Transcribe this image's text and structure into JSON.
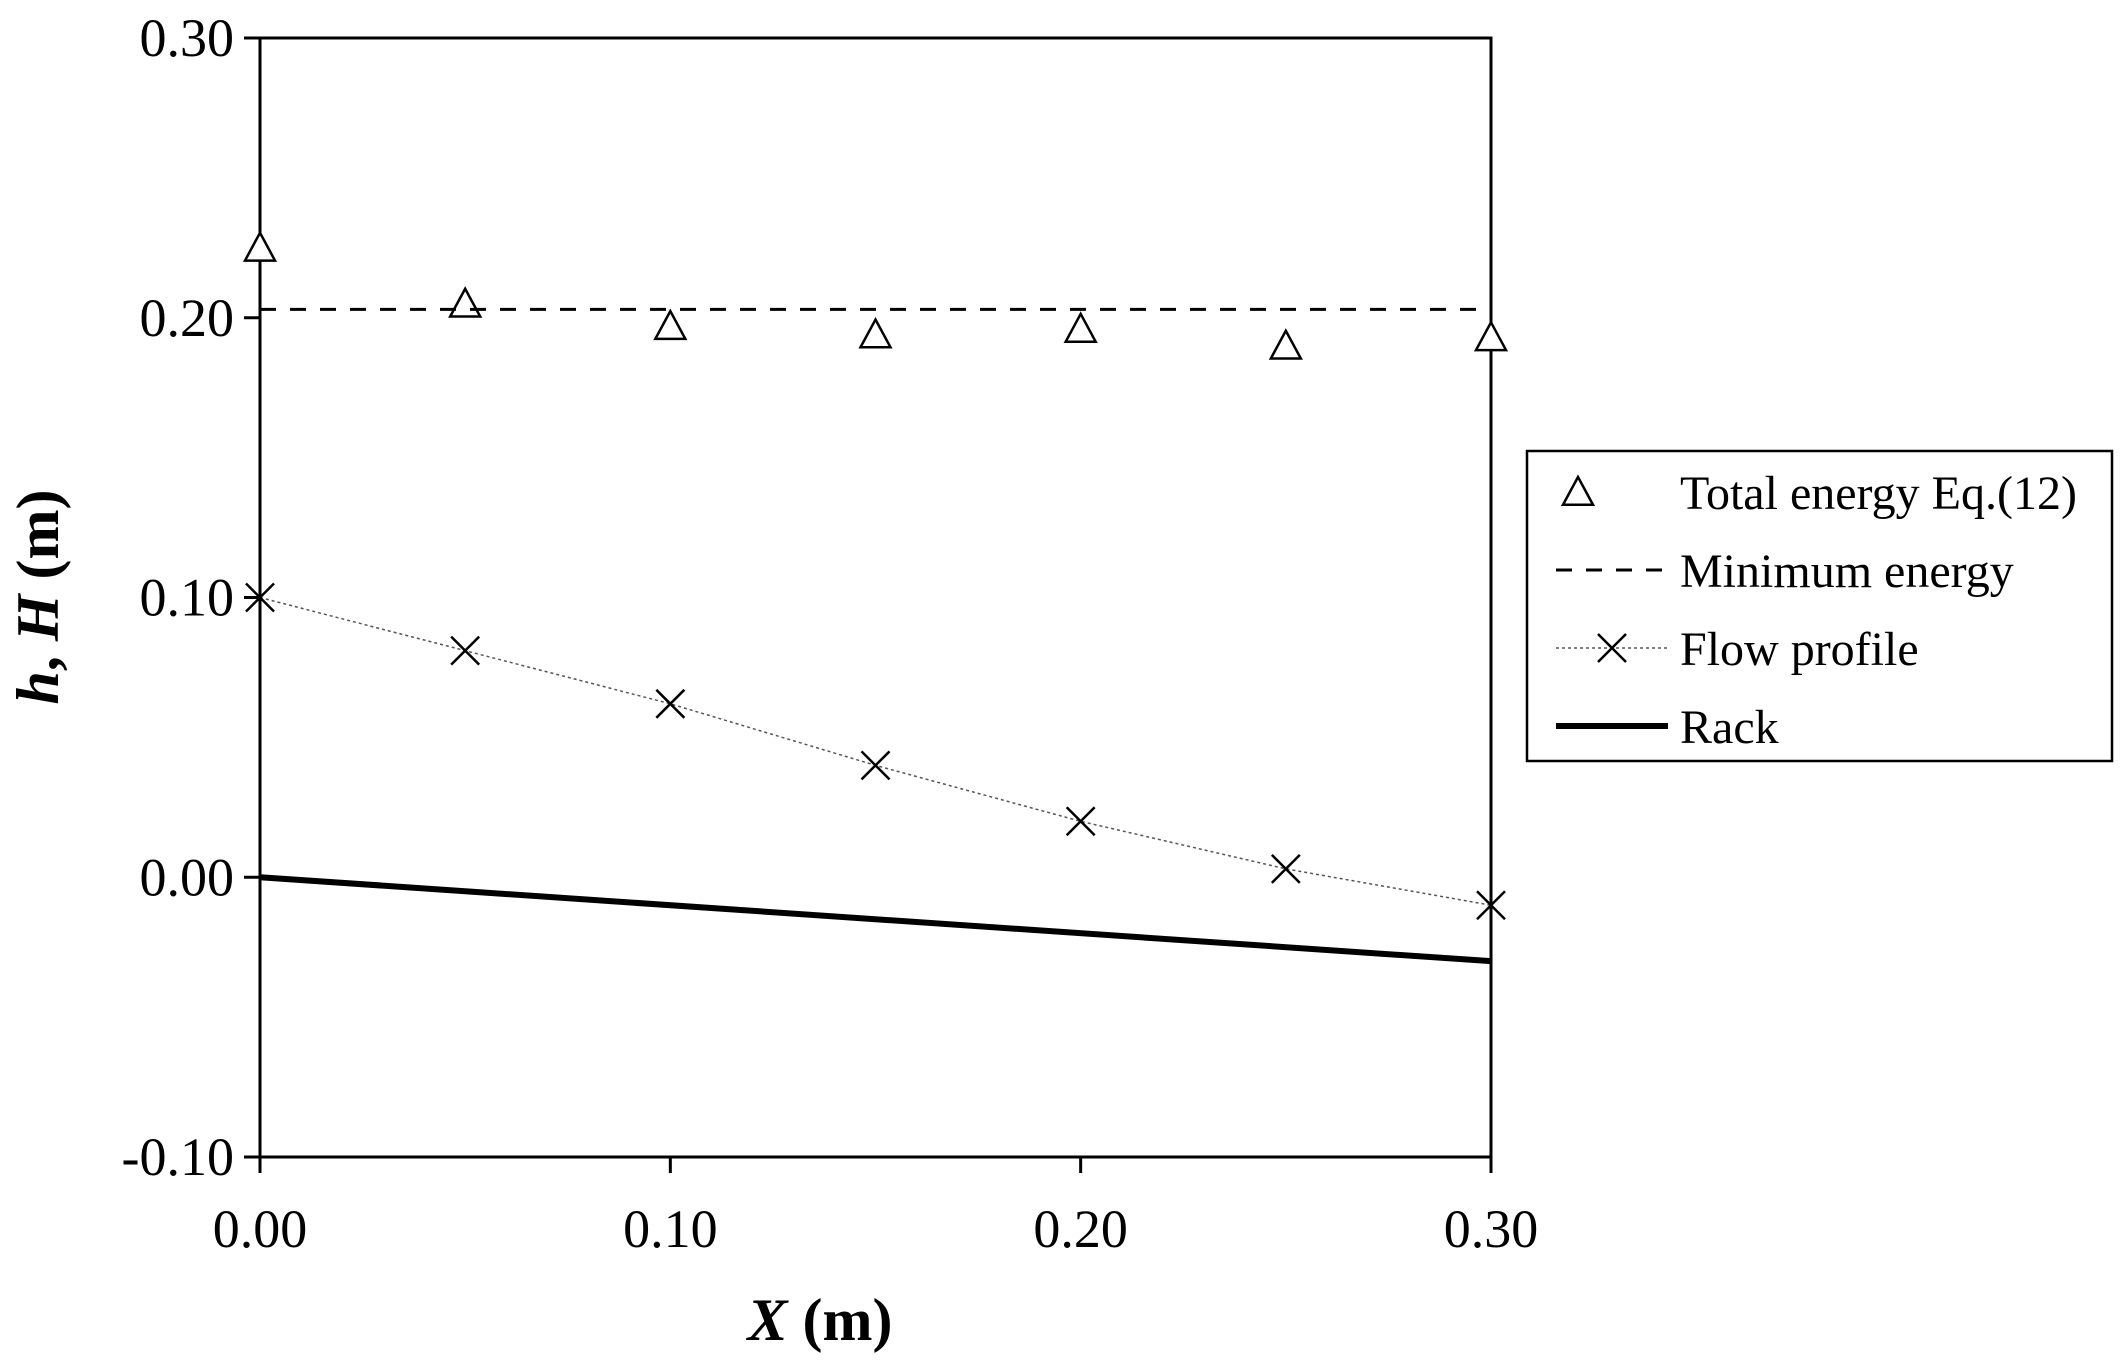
{
  "chart_data": {
    "type": "line",
    "xlabel": {
      "var": "X",
      "unit": " (m)"
    },
    "ylabel": {
      "var1": "h",
      "sep": ", ",
      "var2": "H",
      "unit": " (m)"
    },
    "xlim": [
      0,
      0.3
    ],
    "ylim": [
      -0.1,
      0.3
    ],
    "xticks": [
      0,
      0.1,
      0.2,
      0.3
    ],
    "xtick_labels": [
      "0.00",
      "0.10",
      "0.20",
      "0.30"
    ],
    "yticks": [
      -0.1,
      0,
      0.1,
      0.2,
      0.3
    ],
    "ytick_labels": [
      "-0.10",
      "0.00",
      "0.10",
      "0.20",
      "0.30"
    ],
    "grid": false,
    "legend_position": "right",
    "series": [
      {
        "name": "Total energy Eq.(12)",
        "style": "markers",
        "marker": "triangle",
        "color": "#000000",
        "x": [
          0,
          0.05,
          0.1,
          0.15,
          0.2,
          0.25,
          0.3
        ],
        "y": [
          0.225,
          0.205,
          0.197,
          0.194,
          0.196,
          0.19,
          0.193
        ]
      },
      {
        "name": "Minimum energy",
        "style": "dashed-line",
        "color": "#000000",
        "x": [
          0,
          0.3
        ],
        "y": [
          0.203,
          0.203
        ]
      },
      {
        "name": "Flow profile",
        "style": "dotted-line-markers",
        "marker": "x",
        "color": "#000000",
        "x": [
          0,
          0.05,
          0.1,
          0.15,
          0.2,
          0.25,
          0.3
        ],
        "y": [
          0.1,
          0.081,
          0.062,
          0.04,
          0.02,
          0.003,
          -0.01
        ]
      },
      {
        "name": "Rack",
        "style": "thick-line",
        "color": "#000000",
        "x": [
          0,
          0.3
        ],
        "y": [
          0,
          -0.03
        ]
      }
    ]
  }
}
